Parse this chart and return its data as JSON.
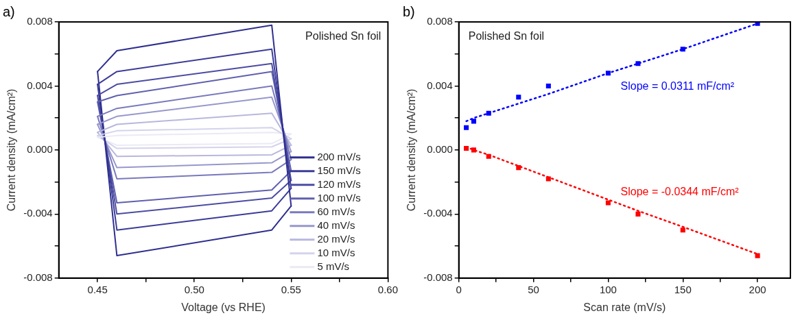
{
  "chart_data": [
    {
      "type": "line",
      "title": "a)",
      "xlabel": "Voltage (vs RHE)",
      "ylabel": "Current density (mA/cm²)",
      "xlim": [
        0.43,
        0.6
      ],
      "xticks": [
        {
          "value": 0.45,
          "label": "0.45"
        },
        {
          "value": 0.475,
          "label": null
        },
        {
          "value": 0.5,
          "label": "0.50"
        },
        {
          "value": 0.525,
          "label": null
        },
        {
          "value": 0.55,
          "label": "0.55"
        },
        {
          "value": 0.575,
          "label": null
        },
        {
          "value": 0.6,
          "label": "0.60"
        }
      ],
      "ylim": [
        -0.008,
        0.008
      ],
      "yticks": [
        -0.008,
        {
          "value": -0.006,
          "label": null
        },
        -0.004,
        {
          "value": -0.002,
          "label": null
        },
        {
          "value": 0,
          "label": "0.000"
        },
        {
          "value": 0.002,
          "label": null
        },
        0.004,
        {
          "value": 0.006,
          "label": null
        },
        0.008
      ],
      "grid": false,
      "legend": "bottom right",
      "marker": "none",
      "line_style": "solid",
      "annotations": [
        "Polished Sn foil"
      ],
      "x": [
        0.45,
        0.46,
        0.54,
        0.55
      ],
      "series": [
        {
          "name": "200 mV/s",
          "color": "#2e2e8f",
          "values": [
            0.0049,
            0.0062,
            0.0078,
            -0.0035
          ]
        },
        {
          "name": "150 mV/s",
          "color": "#3b3b98",
          "values": [
            0.0041,
            0.0049,
            0.0063,
            -0.0024
          ]
        },
        {
          "name": "120 mV/s",
          "color": "#4b4ba3",
          "values": [
            0.0034,
            0.0041,
            0.0054,
            -0.0019
          ]
        },
        {
          "name": "100 mV/s",
          "color": "#5f5fae",
          "values": [
            0.003,
            0.0034,
            0.0049,
            -0.0013
          ]
        },
        {
          "name": "60 mV/s",
          "color": "#7979bd",
          "values": [
            0.0021,
            0.0026,
            0.004,
            -0.0006
          ]
        },
        {
          "name": "40 mV/s",
          "color": "#9797cd",
          "values": [
            0.0016,
            0.0021,
            0.0033,
            -0.0001
          ]
        },
        {
          "name": "20 mV/s",
          "color": "#b7b7de",
          "values": [
            0.0011,
            0.0016,
            0.0023,
            0.0003
          ]
        },
        {
          "name": "10 mV/s",
          "color": "#d3d3ec",
          "values": [
            0.0009,
            0.0012,
            0.0014,
            0.0007
          ]
        },
        {
          "name": "5 mV/s",
          "color": "#eaeaf5",
          "values": [
            0.0008,
            0.0009,
            0.0011,
            0.001
          ]
        },
        {
          "color": "#2e2e8f",
          "values": [
            0.0049,
            -0.0066,
            -0.005,
            -0.0035
          ]
        },
        {
          "color": "#3b3b98",
          "values": [
            0.0041,
            -0.005,
            -0.0038,
            -0.0024
          ]
        },
        {
          "color": "#4b4ba3",
          "values": [
            0.0034,
            -0.004,
            -0.003,
            -0.0019
          ]
        },
        {
          "color": "#5f5fae",
          "values": [
            0.003,
            -0.0033,
            -0.0025,
            -0.0013
          ]
        },
        {
          "color": "#7979bd",
          "values": [
            0.0021,
            -0.0018,
            -0.0014,
            -0.0006
          ]
        },
        {
          "color": "#9797cd",
          "values": [
            0.0016,
            -0.0011,
            -0.0008,
            -0.0001
          ]
        },
        {
          "color": "#b7b7de",
          "values": [
            0.0011,
            -0.0004,
            -0.0003,
            0.0003
          ]
        },
        {
          "color": "#d3d3ec",
          "values": [
            0.0009,
            0.0001,
            0.0002,
            0.0007
          ]
        },
        {
          "color": "#eaeaf5",
          "values": [
            0.0008,
            0.0003,
            0.0004,
            0.001
          ]
        }
      ]
    },
    {
      "type": "scatter",
      "title": "b)",
      "xlabel": "Scan rate (mV/s)",
      "ylabel": "Current density (mA/cm²)",
      "xlim": [
        0,
        222
      ],
      "xticks": [
        0,
        {
          "value": 25,
          "label": null
        },
        50,
        {
          "value": 75,
          "label": null
        },
        100,
        {
          "value": 125,
          "label": null
        },
        150,
        {
          "value": 175,
          "label": null
        },
        200
      ],
      "ylim": [
        -0.008,
        0.008
      ],
      "yticks": [
        -0.008,
        {
          "value": -0.006,
          "label": null
        },
        -0.004,
        {
          "value": -0.002,
          "label": null
        },
        {
          "value": 0,
          "label": "0.000"
        },
        {
          "value": 0.002,
          "label": null
        },
        0.004,
        {
          "value": 0.006,
          "label": null
        },
        0.008
      ],
      "grid": false,
      "marker": "square",
      "annotations": [
        "Polished Sn foil",
        "Slope = 0.0311 mF/cm²",
        "Slope = -0.0344 mF/cm²"
      ],
      "x": [
        5,
        10,
        20,
        40,
        60,
        100,
        120,
        150,
        200
      ],
      "series": [
        {
          "color": "#0000ff",
          "values": [
            0.0014,
            0.0018,
            0.0023,
            0.0033,
            0.004,
            0.0048,
            0.0054,
            0.0063,
            0.0079
          ]
        },
        {
          "color": "#ff0000",
          "values": [
            0.0001,
            0,
            -0.0004,
            -0.0011,
            -0.0018,
            -0.0033,
            -0.004,
            -0.005,
            -0.0066
          ]
        },
        {
          "type": "line",
          "color": "#0000ff",
          "values": [
            0.0018,
            0.002,
            0.0023,
            0.0029,
            0.0035,
            0.0048,
            0.0054,
            0.0063,
            0.0079
          ],
          "marker": "none",
          "line_style": "dotted"
        },
        {
          "type": "line",
          "color": "#ff0000",
          "values": [
            0.0002,
            0,
            -0.0003,
            -0.001,
            -0.0017,
            -0.0031,
            -0.0038,
            -0.0048,
            -0.0065
          ],
          "marker": "none",
          "line_style": "dotted"
        }
      ]
    }
  ]
}
